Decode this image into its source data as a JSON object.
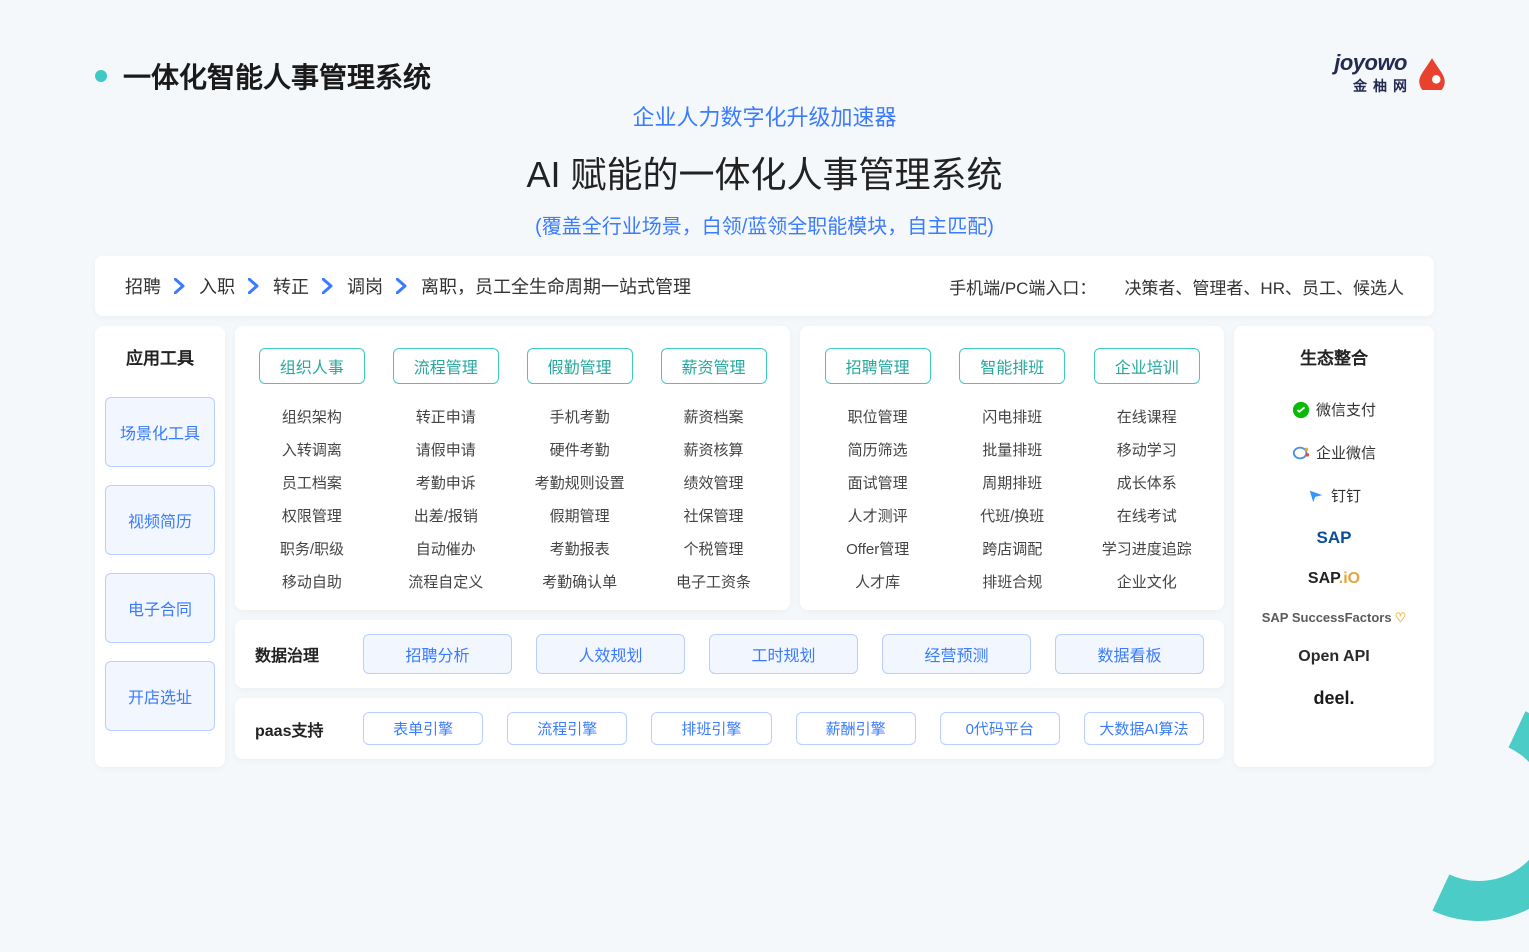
{
  "colors": {
    "background": "#f5f8fb",
    "card_bg": "#ffffff",
    "accent_blue": "#3a7bff",
    "accent_teal": "#3ec9c2",
    "pill_bg": "#f1f6ff",
    "pill_border": "#b9cfff",
    "teal_border": "#3ec9c2",
    "text_primary": "#1a1a1a",
    "text_body": "#444"
  },
  "typography": {
    "page_title_size": 28,
    "hero_kicker_size": 22,
    "hero_main_size": 36,
    "hero_caption_size": 20,
    "mod_header_size": 16,
    "mod_item_size": 15
  },
  "header": {
    "title": "一体化智能人事管理系统"
  },
  "brand": {
    "name": "joyowo",
    "sub": "金柚网"
  },
  "hero": {
    "kicker": "企业人力数字化升级加速器",
    "main": "AI 赋能的一体化人事管理系统",
    "caption": "(覆盖全行业场景，白领/蓝领全职能模块，自主匹配)"
  },
  "lifecycle": {
    "steps": [
      "招聘",
      "入职",
      "转正",
      "调岗"
    ],
    "tail": "离职，员工全生命周期一站式管理",
    "right_label": "手机端/PC端入口：",
    "right_roles": "决策者、管理者、HR、员工、候选人"
  },
  "sidebar": {
    "title": "应用工具",
    "items": [
      "场景化工具",
      "视频简历",
      "电子合同",
      "开店选址"
    ]
  },
  "modules_left": [
    {
      "header": "组织人事",
      "items": [
        "组织架构",
        "入转调离",
        "员工档案",
        "权限管理",
        "职务/职级",
        "移动自助"
      ]
    },
    {
      "header": "流程管理",
      "items": [
        "转正申请",
        "请假申请",
        "考勤申诉",
        "出差/报销",
        "自动催办",
        "流程自定义"
      ]
    },
    {
      "header": "假勤管理",
      "items": [
        "手机考勤",
        "硬件考勤",
        "考勤规则设置",
        "假期管理",
        "考勤报表",
        "考勤确认单"
      ]
    },
    {
      "header": "薪资管理",
      "items": [
        "薪资档案",
        "薪资核算",
        "绩效管理",
        "社保管理",
        "个税管理",
        "电子工资条"
      ]
    }
  ],
  "modules_right": [
    {
      "header": "招聘管理",
      "items": [
        "职位管理",
        "简历筛选",
        "面试管理",
        "人才测评",
        "Offer管理",
        "人才库"
      ]
    },
    {
      "header": "智能排班",
      "items": [
        "闪电排班",
        "批量排班",
        "周期排班",
        "代班/换班",
        "跨店调配",
        "排班合规"
      ]
    },
    {
      "header": "企业培训",
      "items": [
        "在线课程",
        "移动学习",
        "成长体系",
        "在线考试",
        "学习进度追踪",
        "企业文化"
      ]
    }
  ],
  "governance": {
    "label": "数据治理",
    "pills": [
      "招聘分析",
      "人效规划",
      "工时规划",
      "经营预测",
      "数据看板"
    ]
  },
  "paas": {
    "label": "paas支持",
    "pills": [
      "表单引擎",
      "流程引擎",
      "排班引擎",
      "薪酬引擎",
      "0代码平台",
      "大数据AI算法"
    ]
  },
  "ecosystem": {
    "title": "生态整合",
    "items": [
      {
        "key": "wechat-pay",
        "label": "微信支付"
      },
      {
        "key": "wecom",
        "label": "企业微信"
      },
      {
        "key": "dingtalk",
        "label": "钉钉"
      },
      {
        "key": "sap",
        "label": "SAP"
      },
      {
        "key": "sapio",
        "label": "SAP.iO"
      },
      {
        "key": "successfactors",
        "label": "SAP SuccessFactors"
      },
      {
        "key": "openapi",
        "label": "Open API"
      },
      {
        "key": "deel",
        "label": "deel."
      }
    ]
  }
}
